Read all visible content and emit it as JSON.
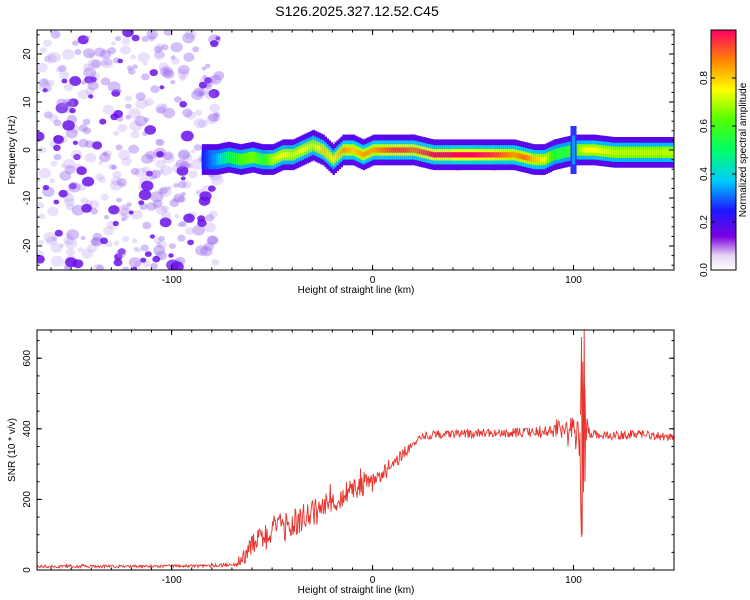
{
  "title": "S126.2025.327.12.52.C45",
  "chart_data": [
    {
      "type": "heatmap",
      "name": "spectrogram",
      "xlabel": "Height of straight line (km)",
      "ylabel": "Frequency (Hz)",
      "xlim": [
        -167,
        150
      ],
      "ylim": [
        -25,
        25
      ],
      "xticks": [
        -100,
        0,
        100
      ],
      "xtick_labels": [
        "-100",
        "0",
        "100"
      ],
      "yticks": [
        -20,
        -10,
        0,
        10,
        20
      ],
      "ytick_labels": [
        "-20",
        "-10",
        "0",
        "10",
        "20"
      ],
      "noise_region_x": [
        -167,
        -82
      ],
      "signal_start_x": -85,
      "ridge": {
        "x": [
          -85,
          -78,
          -72,
          -66,
          -60,
          -55,
          -50,
          -45,
          -40,
          -35,
          -30,
          -25,
          -20,
          -15,
          -10,
          -5,
          0,
          5,
          10,
          15,
          20,
          30,
          40,
          50,
          60,
          70,
          75,
          80,
          85,
          90,
          95,
          100,
          105,
          110,
          120,
          130,
          140,
          150
        ],
        "freq": [
          -2,
          -2,
          -1.5,
          -2,
          -1.5,
          -2,
          -2,
          -1,
          -1,
          0,
          1,
          0,
          -2,
          0,
          0,
          -1,
          0,
          0,
          0,
          0,
          0,
          -1,
          -1,
          -1,
          -1,
          -1,
          -1.5,
          -2,
          -2,
          -1,
          -0.5,
          0,
          0,
          0,
          -0.5,
          -0.5,
          -0.5,
          -0.5
        ],
        "amp": [
          0.25,
          0.35,
          0.5,
          0.6,
          0.65,
          0.55,
          0.7,
          0.75,
          0.7,
          0.75,
          0.7,
          0.8,
          0.75,
          0.85,
          0.8,
          0.85,
          0.85,
          0.9,
          0.95,
          0.95,
          0.9,
          1.0,
          1.0,
          1.0,
          0.95,
          0.85,
          0.9,
          0.8,
          0.75,
          0.55,
          0.55,
          0.6,
          0.75,
          0.75,
          0.7,
          0.7,
          0.7,
          0.7
        ]
      }
    },
    {
      "type": "colorbar",
      "name": "amplitude-colorbar",
      "label": "Normalized spectral amplitude",
      "range": [
        0,
        1
      ],
      "ticks": [
        0.0,
        0.2,
        0.4,
        0.6,
        0.8
      ],
      "tick_labels": [
        "0.0",
        "0.2",
        "0.4",
        "0.6",
        "0.8"
      ]
    },
    {
      "type": "line",
      "name": "snr-plot",
      "xlabel": "Height of straight line (km)",
      "ylabel": "SNR (10 * v/v)",
      "xlim": [
        -167,
        150
      ],
      "ylim": [
        0,
        680
      ],
      "xticks": [
        -100,
        0,
        100
      ],
      "xtick_labels": [
        "-100",
        "0",
        "100"
      ],
      "yticks": [
        0,
        200,
        400,
        600
      ],
      "ytick_labels": [
        "0",
        "200",
        "400",
        "600"
      ],
      "color": "#e8322b",
      "series": [
        {
          "name": "SNR",
          "x": [
            -167,
            -120,
            -80,
            -70,
            -65,
            -60,
            -55,
            -50,
            -45,
            -40,
            -35,
            -30,
            -25,
            -20,
            -15,
            -10,
            -5,
            0,
            5,
            10,
            15,
            20,
            25,
            30,
            40,
            60,
            80,
            90,
            95,
            100,
            103,
            104,
            105,
            106,
            108,
            110,
            120,
            130,
            140,
            150
          ],
          "y": [
            10,
            10,
            12,
            15,
            30,
            70,
            90,
            110,
            120,
            130,
            145,
            160,
            175,
            190,
            210,
            225,
            240,
            250,
            270,
            300,
            330,
            355,
            375,
            385,
            385,
            388,
            390,
            395,
            395,
            395,
            380,
            180,
            600,
            420,
            385,
            385,
            380,
            385,
            380,
            375
          ],
          "noise": [
            4,
            4,
            4,
            6,
            20,
            35,
            40,
            45,
            40,
            40,
            40,
            40,
            40,
            40,
            35,
            35,
            30,
            30,
            25,
            25,
            18,
            12,
            12,
            12,
            12,
            12,
            14,
            22,
            30,
            40,
            60,
            120,
            200,
            60,
            12,
            12,
            12,
            12,
            12,
            12
          ]
        }
      ]
    }
  ],
  "colors": {
    "ridge_low": "#2040ff",
    "ridge_high": "#ff0000",
    "noise_dots": "#8a2be2",
    "snr_line": "#e8322b"
  }
}
